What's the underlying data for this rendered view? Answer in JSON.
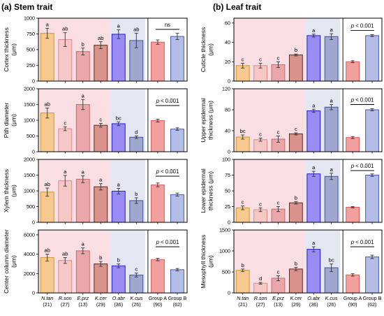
{
  "figure": {
    "left_title": "(a) Stem trait",
    "right_title": "(b) Leaf trait",
    "categories": [
      "N.tan",
      "R.son",
      "E.prz",
      "K.cer",
      "O.abr",
      "K.cus"
    ],
    "category_counts": [
      "(21)",
      "(27)",
      "(13)",
      "(29)",
      "(36)",
      "(26)"
    ],
    "group_categories": [
      "Group A",
      "Group B"
    ],
    "group_counts": [
      "(90)",
      "(62)"
    ],
    "colors": {
      "species_fill": [
        "#f7c98e",
        "#f5c8c6",
        "#eaa6a8",
        "#d9928c",
        "#9a8cf2",
        "#9fa6d0"
      ],
      "species_stroke": [
        "#c99a2e",
        "#d98a8a",
        "#c86a6a",
        "#5a2a1a",
        "#2a1ad0",
        "#3a55a0"
      ],
      "group_fill": [
        "#f2a09d",
        "#b3bde6"
      ],
      "group_stroke": [
        "#d85a5a",
        "#4a5ab0"
      ],
      "bg_pink": "#f9dfe4",
      "bg_blue": "#e4e7f2",
      "x_count_colors": [
        "#000000",
        "#000000",
        "#008080",
        "#000000",
        "#000000",
        "#000000"
      ]
    }
  },
  "chart_data": [
    {
      "type": "bar",
      "panel": "a",
      "ylabel_lines": [
        "Cortex thickness",
        "(μm)"
      ],
      "ylim": [
        0,
        1000
      ],
      "yticks": [
        0,
        250,
        500,
        750,
        1000
      ],
      "values": [
        760,
        660,
        470,
        570,
        745,
        645
      ],
      "errors": [
        80,
        110,
        55,
        55,
        70,
        115
      ],
      "letters": [
        "a",
        "ab",
        "b",
        "ab",
        "a",
        "ab"
      ],
      "group_values": [
        620,
        710
      ],
      "group_errors": [
        35,
        50
      ],
      "p_label": "ns",
      "p_italic": false
    },
    {
      "type": "bar",
      "panel": "a",
      "ylabel_lines": [
        "Pith diameter",
        "(μm)"
      ],
      "ylim": [
        0,
        2000
      ],
      "yticks": [
        0,
        500,
        1000,
        1500,
        2000
      ],
      "values": [
        1230,
        730,
        1500,
        840,
        890,
        460
      ],
      "errors": [
        160,
        60,
        160,
        60,
        60,
        40
      ],
      "letters": [
        "ab",
        "c",
        "a",
        "c",
        "bc",
        "d"
      ],
      "group_values": [
        990,
        720
      ],
      "group_errors": [
        45,
        40
      ],
      "p_label": "p < 0.001",
      "p_italic": true
    },
    {
      "type": "bar",
      "panel": "a",
      "ylabel_lines": [
        "Xylem thickness",
        "(μm)"
      ],
      "ylim": [
        0,
        2000
      ],
      "yticks": [
        0,
        500,
        1000,
        1500,
        2000
      ],
      "values": [
        960,
        1320,
        1370,
        1130,
        990,
        690
      ],
      "errors": [
        130,
        170,
        110,
        100,
        90,
        90
      ],
      "letters": [
        "ab",
        "a",
        "a",
        "a",
        "a",
        "b"
      ],
      "group_values": [
        1190,
        880
      ],
      "group_errors": [
        60,
        50
      ],
      "p_label": "p < 0.001",
      "p_italic": true
    },
    {
      "type": "bar",
      "panel": "a",
      "ylabel_lines": [
        "Center column diameter",
        "(μm)"
      ],
      "ylim": [
        0,
        6500
      ],
      "yticks": [
        0,
        2000,
        4000,
        6000
      ],
      "values": [
        3650,
        3350,
        4350,
        3000,
        2800,
        1850
      ],
      "errors": [
        350,
        300,
        300,
        250,
        200,
        200
      ],
      "letters": [
        "ab",
        "ab",
        "a",
        "b",
        "b",
        "c"
      ],
      "group_values": [
        3450,
        2400
      ],
      "group_errors": [
        130,
        120
      ],
      "p_label": "p < 0.001",
      "p_italic": true
    },
    {
      "type": "bar",
      "panel": "b",
      "ylabel_lines": [
        "Cuticle thickness",
        "(μm)"
      ],
      "ylim": [
        0,
        65
      ],
      "yticks": [
        0,
        20,
        40,
        60
      ],
      "values": [
        16,
        16,
        17,
        27,
        47,
        46
      ],
      "errors": [
        2.5,
        2.5,
        3,
        1,
        1.5,
        3
      ],
      "letters": [
        "c",
        "c",
        "c",
        "b",
        "a",
        "a"
      ],
      "group_values": [
        20,
        47
      ],
      "group_errors": [
        1,
        1
      ],
      "p_label": "p < 0.001",
      "p_italic": true
    },
    {
      "type": "bar",
      "panel": "b",
      "ylabel_lines": [
        "Upper epidermal",
        "thickness (μm)"
      ],
      "ylim": [
        0,
        120
      ],
      "yticks": [
        0,
        40,
        80,
        120
      ],
      "values": [
        28,
        23,
        24,
        34,
        78,
        85
      ],
      "errors": [
        4,
        3,
        6,
        2,
        3,
        5
      ],
      "letters": [
        "bc",
        "c",
        "c",
        "c",
        "a",
        "a"
      ],
      "group_values": [
        27,
        80
      ],
      "group_errors": [
        2,
        2
      ],
      "p_label": "p < 0.001",
      "p_italic": true
    },
    {
      "type": "bar",
      "panel": "b",
      "ylabel_lines": [
        "Lower epidermal",
        "thickness (μm)"
      ],
      "ylim": [
        0,
        100
      ],
      "yticks": [
        0,
        25,
        50,
        75,
        100
      ],
      "values": [
        23,
        20,
        21,
        31,
        77,
        73
      ],
      "errors": [
        3,
        3,
        4,
        2,
        4,
        5
      ],
      "letters": [
        "c",
        "c",
        "c",
        "b",
        "a",
        "a"
      ],
      "group_values": [
        24,
        75
      ],
      "group_errors": [
        1,
        2
      ],
      "p_label": "p < 0.001",
      "p_italic": true
    },
    {
      "type": "bar",
      "panel": "b",
      "ylabel_lines": [
        "Mesophyll thickness",
        "(μm)"
      ],
      "ylim": [
        0,
        1500
      ],
      "yticks": [
        0,
        500,
        1000,
        1500
      ],
      "values": [
        540,
        230,
        350,
        570,
        1040,
        600
      ],
      "errors": [
        30,
        20,
        60,
        40,
        60,
        90
      ],
      "letters": [
        "b",
        "d",
        "c",
        "b",
        "a",
        "bc"
      ],
      "group_values": [
        430,
        860
      ],
      "group_errors": [
        30,
        40
      ],
      "p_label": "p < 0.001",
      "p_italic": true
    }
  ]
}
